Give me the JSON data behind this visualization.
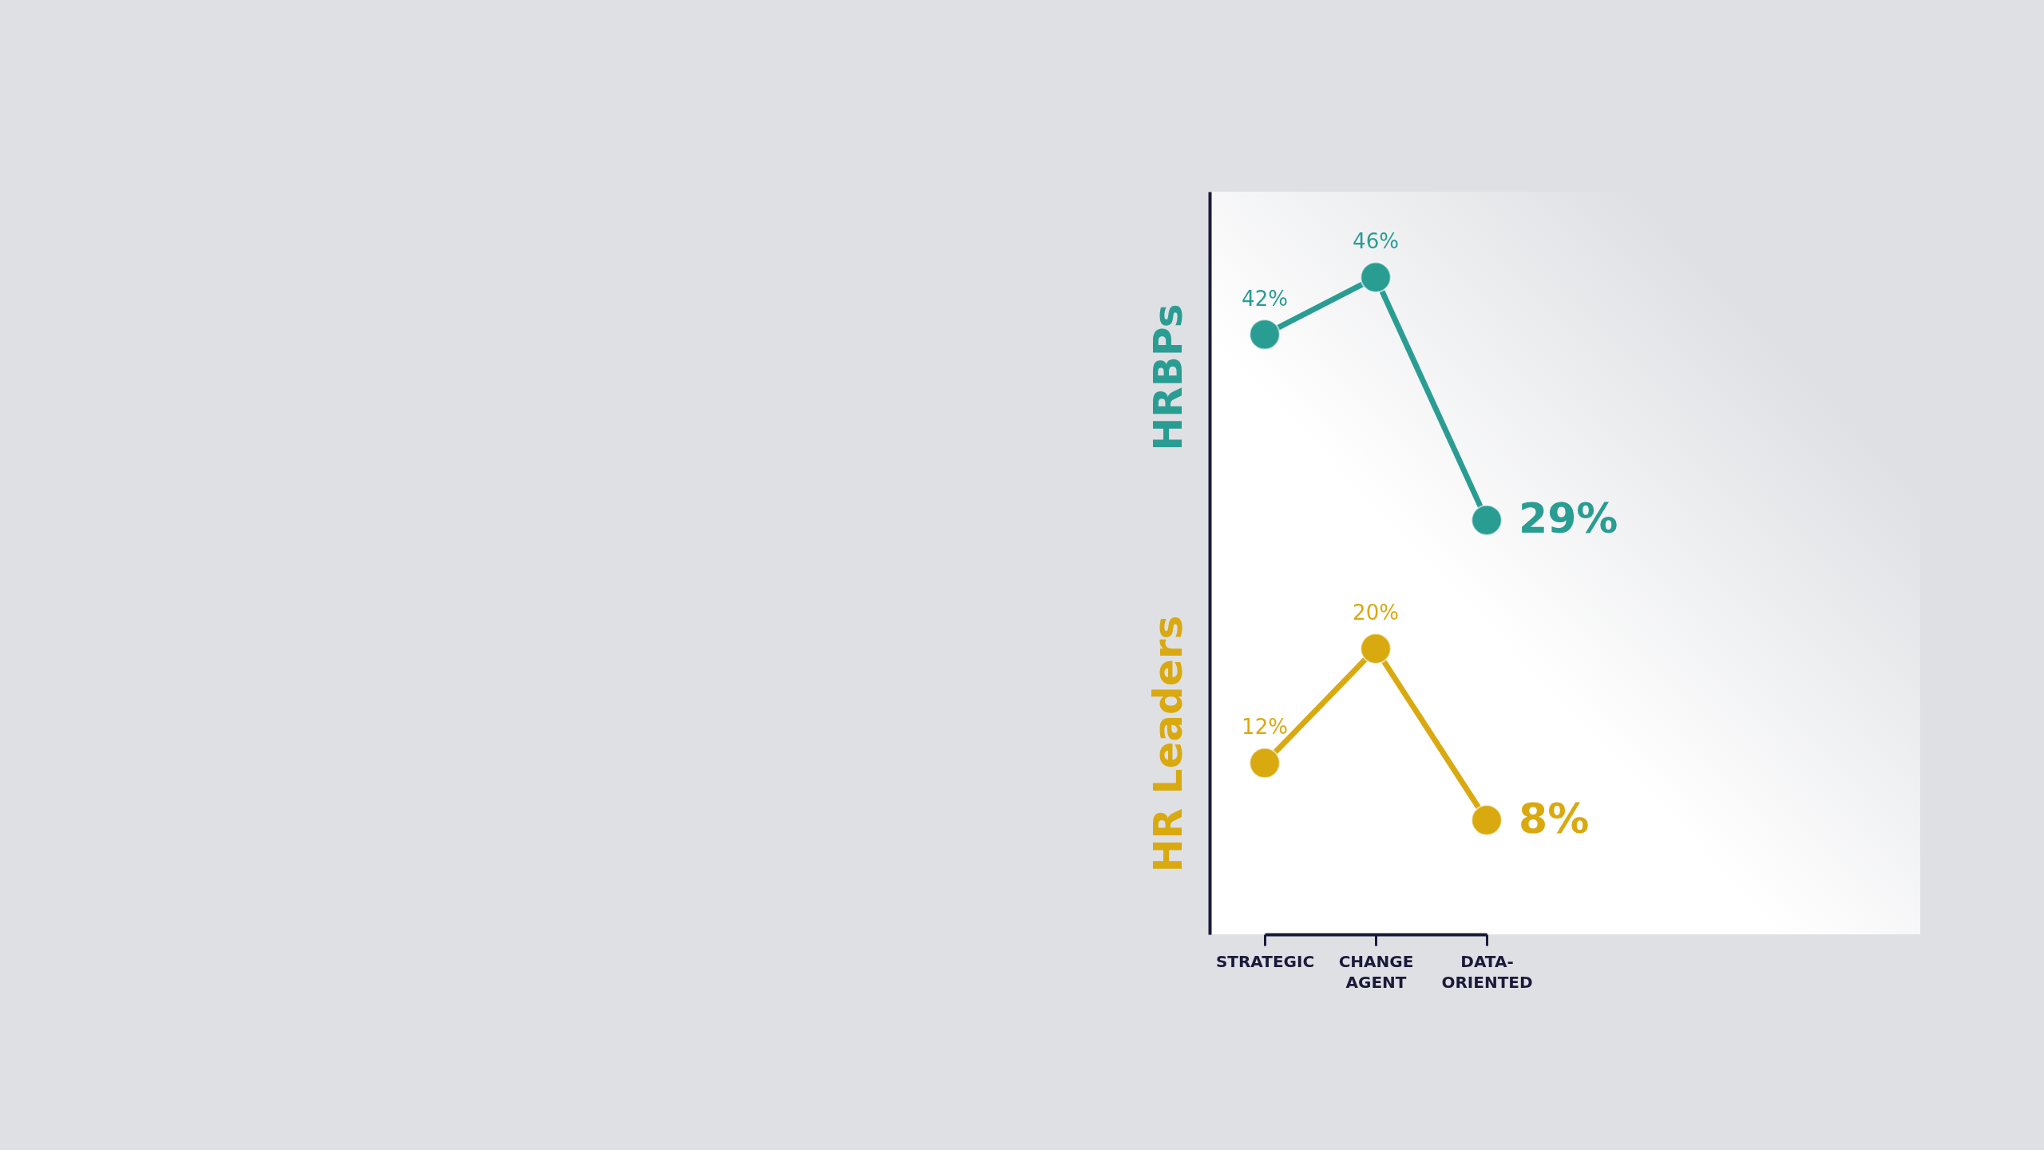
{
  "chart_data": {
    "type": "line",
    "categories": [
      "STRATEGIC",
      "CHANGE AGENT",
      "DATA-ORIENTED"
    ],
    "series": [
      {
        "name": "HRBPs",
        "color": "#2a9d93",
        "values": [
          42,
          46,
          29
        ],
        "value_labels": [
          "42%",
          "46%",
          "29%"
        ]
      },
      {
        "name": "HR Leaders",
        "color": "#d9a910",
        "values": [
          12,
          20,
          8
        ],
        "value_labels": [
          "12%",
          "20%",
          "8%"
        ]
      }
    ],
    "ylim": [
      0,
      52
    ],
    "tick_labels": "x",
    "grid": false,
    "legend": "left",
    "marker": "circle",
    "line_style": "solid"
  }
}
